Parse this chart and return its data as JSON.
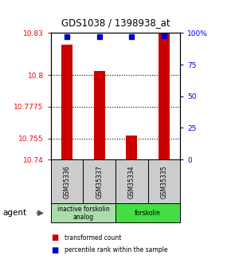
{
  "title": "GDS1038 / 1398938_at",
  "samples": [
    "GSM35336",
    "GSM35337",
    "GSM35334",
    "GSM35335"
  ],
  "bar_values": [
    10.822,
    10.803,
    10.757,
    10.83
  ],
  "percentile_values": [
    97,
    97,
    97,
    98
  ],
  "y_min": 10.74,
  "y_max": 10.83,
  "y_ticks": [
    10.83,
    10.8,
    10.7775,
    10.755,
    10.74
  ],
  "y_tick_labels": [
    "10.83",
    "10.8",
    "10.7775",
    "10.755",
    "10.74"
  ],
  "y2_ticks": [
    100,
    75,
    50,
    25,
    0
  ],
  "y2_tick_labels": [
    "100%",
    "75",
    "50",
    "25",
    "0"
  ],
  "bar_color": "#cc0000",
  "percentile_color": "#0000cc",
  "bg_color": "#ffffff",
  "groups": [
    {
      "label": "inactive forskolin\nanalog",
      "color": "#aaddaa",
      "span": [
        0,
        2
      ]
    },
    {
      "label": "forskolin",
      "color": "#44dd44",
      "span": [
        2,
        4
      ]
    }
  ],
  "legend_red": "transformed count",
  "legend_blue": "percentile rank within the sample",
  "agent_label": "agent",
  "bar_width": 0.35,
  "sample_bg_color": "#cccccc",
  "grid_dotted_ticks": [
    10.8,
    10.7775,
    10.755
  ]
}
